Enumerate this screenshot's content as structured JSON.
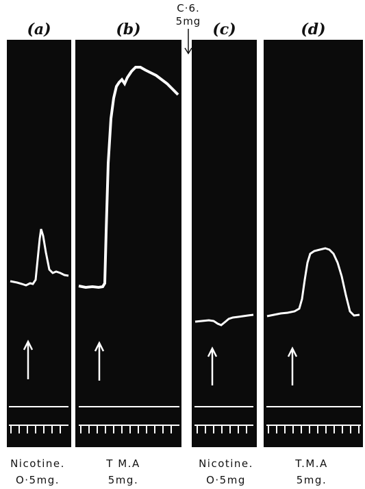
{
  "panels": [
    {
      "label": "(a)",
      "drug": "Nicotine.",
      "dose": "O·5mg."
    },
    {
      "label": "(b)",
      "drug": "T M.A",
      "dose": "5mg."
    },
    {
      "label": "(c)",
      "drug": "Nicotine.",
      "dose": "O·5mg"
    },
    {
      "label": "(d)",
      "drug": "T.M.A",
      "dose": "5mg."
    }
  ],
  "top_marker": {
    "text": "C·6. 5mg"
  },
  "colors": {
    "background": "#0b0b0b",
    "trace": "#ffffff",
    "page": "#ffffff"
  }
}
